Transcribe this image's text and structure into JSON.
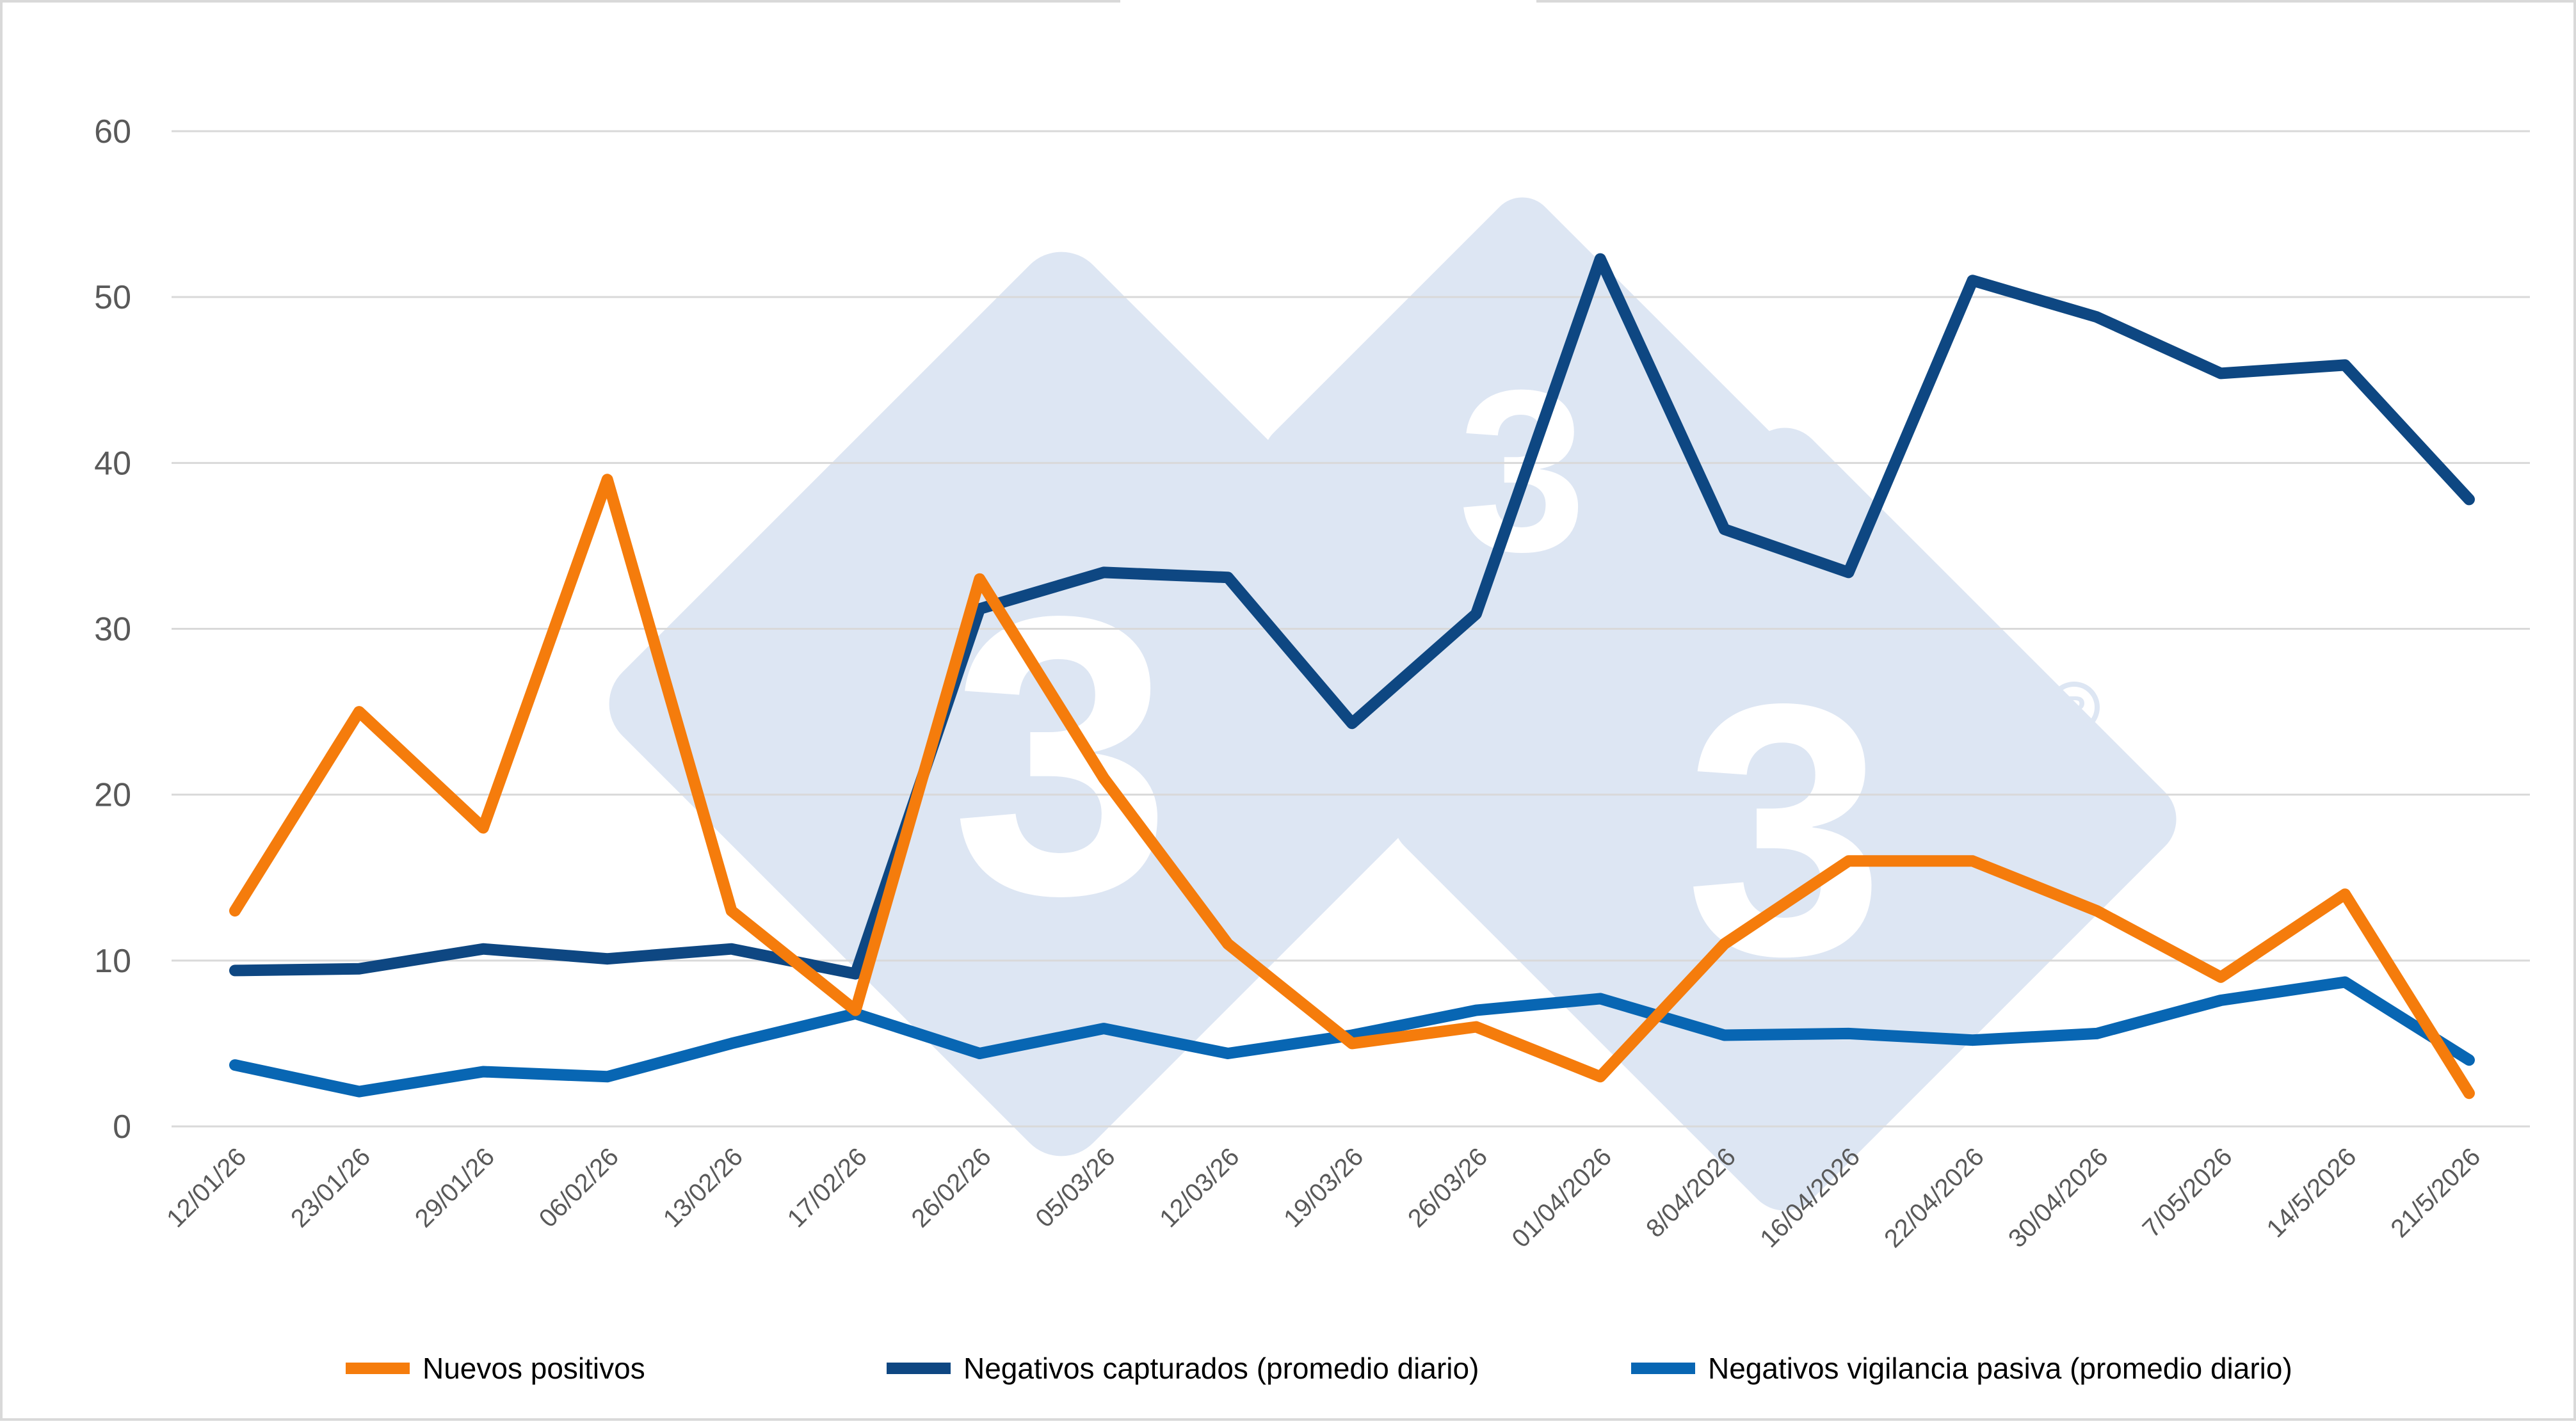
{
  "chart_data": {
    "type": "line",
    "title": "",
    "xlabel": "",
    "ylabel": "",
    "ylim": [
      0,
      60
    ],
    "yticks": [
      0,
      10,
      20,
      30,
      40,
      50,
      60
    ],
    "grid": true,
    "legend_position": "bottom",
    "categories": [
      "12/01/26",
      "23/01/26",
      "29/01/26",
      "06/02/26",
      "13/02/26",
      "17/02/26",
      "26/02/26",
      "05/03/26",
      "12/03/26",
      "19/03/26",
      "26/03/26",
      "01/04/2026",
      "8/04/2026",
      "16/04/2026",
      "22/04/2026",
      "30/04/2026",
      "7/05/2026",
      "14/5/2026",
      "21/5/2026"
    ],
    "series": [
      {
        "name": "Nuevos positivos",
        "color": "#f57c0c",
        "values": [
          13,
          25,
          18,
          39,
          13,
          7,
          33,
          21,
          11,
          5,
          6,
          3,
          11,
          16,
          16,
          13,
          9,
          14,
          2
        ]
      },
      {
        "name": "Negativos capturados (promedio diario)",
        "color": "#0e4782",
        "values": [
          9.4,
          9.5,
          10.7,
          10.1,
          10.7,
          9.2,
          31.2,
          33.4,
          33.1,
          24.3,
          30.9,
          52.3,
          36.0,
          33.4,
          51.0,
          48.8,
          45.4,
          45.9,
          37.8
        ]
      },
      {
        "name": "Negativos vigilancia pasiva (promedio diario)",
        "color": "#0866b3",
        "values": [
          3.7,
          2.1,
          3.3,
          3.0,
          5.0,
          6.8,
          4.4,
          5.9,
          4.4,
          5.5,
          7.0,
          7.7,
          5.5,
          5.6,
          5.2,
          5.6,
          7.6,
          8.7,
          4.0
        ]
      }
    ]
  }
}
